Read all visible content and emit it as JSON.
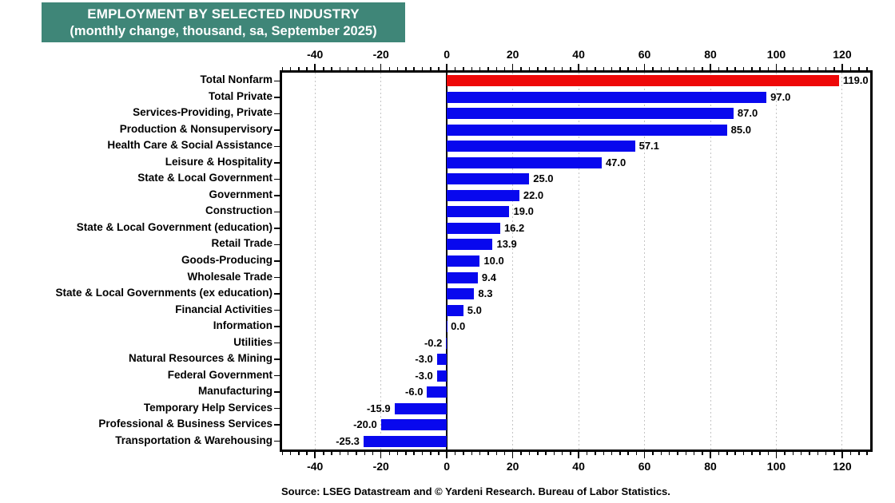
{
  "header": {
    "title": "EMPLOYMENT BY SELECTED INDUSTRY",
    "subtitle": "(monthly change, thousand, sa, September 2025)",
    "banner_color": "#3f8678"
  },
  "footer": {
    "source": "Source: LSEG Datastream and © Yardeni Research. Bureau of Labor Statistics."
  },
  "colors": {
    "highlight_bar": "#ee0808",
    "default_bar": "#0808ee",
    "grid": "#c4c4c4",
    "axis": "#000000"
  },
  "chart_data": {
    "type": "bar",
    "orientation": "horizontal",
    "title": "EMPLOYMENT BY SELECTED INDUSTRY (monthly change, thousand, sa, September 2025)",
    "xlabel": "monthly change, thousand",
    "xlim": [
      -50,
      128.5
    ],
    "x_ticks": [
      -40,
      -20,
      0,
      20,
      40,
      60,
      80,
      100,
      120
    ],
    "minor_tick_step": 2.5,
    "grid": "dotted-vertical-at-major-ticks",
    "rows": [
      {
        "label": "Total Nonfarm",
        "value": 119.0,
        "display": "119.0",
        "color": "highlight"
      },
      {
        "label": "Total Private",
        "value": 97.0,
        "display": "97.0",
        "color": "default"
      },
      {
        "label": "Services-Providing, Private",
        "value": 87.0,
        "display": "87.0",
        "color": "default"
      },
      {
        "label": "Production & Nonsupervisory",
        "value": 85.0,
        "display": "85.0",
        "color": "default"
      },
      {
        "label": "Health Care & Social Assistance",
        "value": 57.1,
        "display": "57.1",
        "color": "default"
      },
      {
        "label": "Leisure & Hospitality",
        "value": 47.0,
        "display": "47.0",
        "color": "default"
      },
      {
        "label": "State & Local Government",
        "value": 25.0,
        "display": "25.0",
        "color": "default"
      },
      {
        "label": "Government",
        "value": 22.0,
        "display": "22.0",
        "color": "default"
      },
      {
        "label": "Construction",
        "value": 19.0,
        "display": "19.0",
        "color": "default"
      },
      {
        "label": "State & Local Government (education)",
        "value": 16.2,
        "display": "16.2",
        "color": "default"
      },
      {
        "label": "Retail Trade",
        "value": 13.9,
        "display": "13.9",
        "color": "default"
      },
      {
        "label": "Goods-Producing",
        "value": 10.0,
        "display": "10.0",
        "color": "default"
      },
      {
        "label": "Wholesale Trade",
        "value": 9.4,
        "display": "9.4",
        "color": "default"
      },
      {
        "label": "State & Local Governments (ex education)",
        "value": 8.3,
        "display": "8.3",
        "color": "default"
      },
      {
        "label": "Financial Activities",
        "value": 5.0,
        "display": "5.0",
        "color": "default"
      },
      {
        "label": "Information",
        "value": 0.0,
        "display": "0.0",
        "color": "default"
      },
      {
        "label": "Utilities",
        "value": -0.2,
        "display": "-0.2",
        "color": "default"
      },
      {
        "label": "Natural Resources & Mining",
        "value": -3.0,
        "display": "-3.0",
        "color": "default"
      },
      {
        "label": "Federal Government",
        "value": -3.0,
        "display": "-3.0",
        "color": "default"
      },
      {
        "label": "Manufacturing",
        "value": -6.0,
        "display": "-6.0",
        "color": "default"
      },
      {
        "label": "Temporary Help Services",
        "value": -15.9,
        "display": "-15.9",
        "color": "default"
      },
      {
        "label": "Professional & Business Services",
        "value": -20.0,
        "display": "-20.0",
        "color": "default"
      },
      {
        "label": "Transportation & Warehousing",
        "value": -25.3,
        "display": "-25.3",
        "color": "default"
      }
    ]
  }
}
